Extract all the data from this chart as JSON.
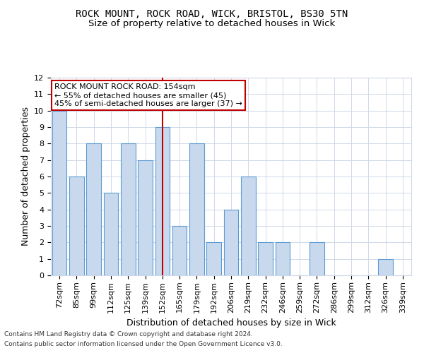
{
  "title1": "ROCK MOUNT, ROCK ROAD, WICK, BRISTOL, BS30 5TN",
  "title2": "Size of property relative to detached houses in Wick",
  "xlabel": "Distribution of detached houses by size in Wick",
  "ylabel": "Number of detached properties",
  "categories": [
    "72sqm",
    "85sqm",
    "99sqm",
    "112sqm",
    "125sqm",
    "139sqm",
    "152sqm",
    "165sqm",
    "179sqm",
    "192sqm",
    "206sqm",
    "219sqm",
    "232sqm",
    "246sqm",
    "259sqm",
    "272sqm",
    "286sqm",
    "299sqm",
    "312sqm",
    "326sqm",
    "339sqm"
  ],
  "values": [
    10,
    6,
    8,
    5,
    8,
    7,
    9,
    3,
    8,
    2,
    4,
    6,
    2,
    2,
    0,
    2,
    0,
    0,
    0,
    1,
    0
  ],
  "bar_color": "#c8d9ed",
  "bar_edge_color": "#5b9bd5",
  "vline_index": 6,
  "vline_color": "#c00000",
  "annotation_line1": "ROCK MOUNT ROCK ROAD: 154sqm",
  "annotation_line2": "← 55% of detached houses are smaller (45)",
  "annotation_line3": "45% of semi-detached houses are larger (37) →",
  "annotation_box_color": "#ffffff",
  "annotation_box_edge": "#c00000",
  "ylim": [
    0,
    12
  ],
  "yticks": [
    0,
    1,
    2,
    3,
    4,
    5,
    6,
    7,
    8,
    9,
    10,
    11,
    12
  ],
  "footnote1": "Contains HM Land Registry data © Crown copyright and database right 2024.",
  "footnote2": "Contains public sector information licensed under the Open Government Licence v3.0.",
  "bg_color": "#ffffff",
  "grid_color": "#d0d8e8",
  "title1_fontsize": 10,
  "title2_fontsize": 9.5,
  "axis_label_fontsize": 9,
  "tick_fontsize": 8,
  "annotation_fontsize": 8,
  "footnote_fontsize": 6.5
}
